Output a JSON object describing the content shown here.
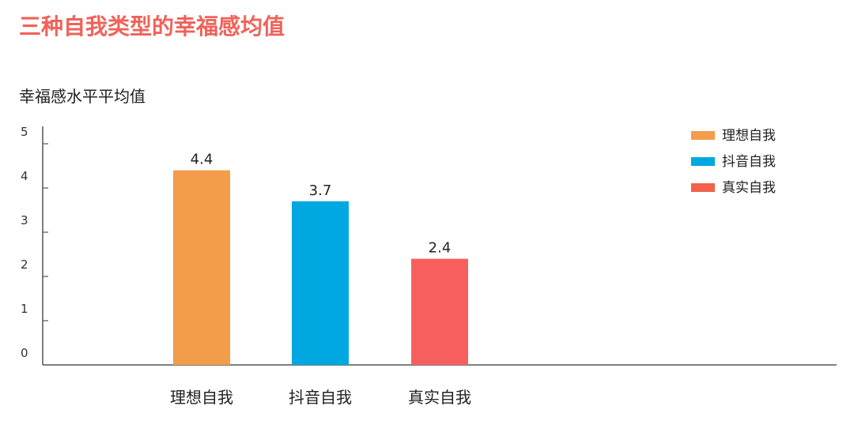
{
  "chart_data": {
    "type": "bar",
    "title": "三种自我类型的幸福感均值",
    "ylabel": "幸福感水平平均值",
    "xlabel": "",
    "categories": [
      "理想自我",
      "抖音自我",
      "真实自我"
    ],
    "values": [
      4.4,
      3.7,
      2.4
    ],
    "value_labels": [
      "4.4",
      "3.7",
      "2.4"
    ],
    "colors": [
      "#f39c4a",
      "#00a8e1",
      "#f75f5f"
    ],
    "ylim": [
      0,
      5
    ],
    "yticks": [
      "0",
      "1",
      "2",
      "3",
      "4",
      "5"
    ],
    "grid": false,
    "legend": {
      "placement": "top-right",
      "items": [
        {
          "label": "理想自我",
          "color": "#f39c4a"
        },
        {
          "label": "抖音自我",
          "color": "#00a8e1"
        },
        {
          "label": "真实自我",
          "color": "#f0624a"
        }
      ]
    }
  }
}
